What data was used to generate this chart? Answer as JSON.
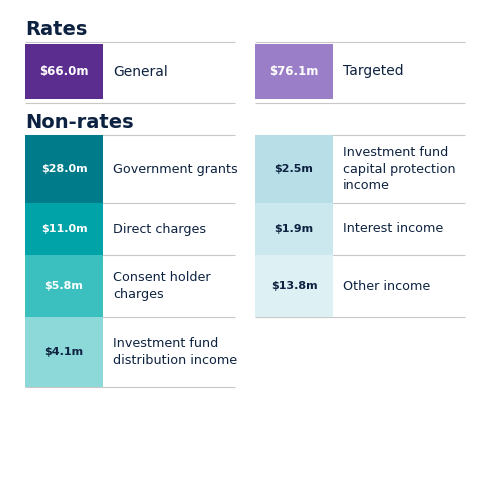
{
  "title_rates": "Rates",
  "title_non_rates": "Non-rates",
  "bg_color": "#ffffff",
  "title_color": "#0d2240",
  "label_color": "#0d2240",
  "rates": [
    {
      "amount": "$66.0m",
      "label": "General",
      "box_color": "#5b2d8e",
      "text_color": "#ffffff"
    },
    {
      "amount": "$76.1m",
      "label": "Targeted",
      "box_color": "#9b7ec8",
      "text_color": "#ffffff"
    }
  ],
  "non_rates_left": [
    {
      "amount": "$28.0m",
      "label": "Government grants",
      "box_color": "#007b8a",
      "text_color": "#ffffff"
    },
    {
      "amount": "$11.0m",
      "label": "Direct charges",
      "box_color": "#00a3a8",
      "text_color": "#ffffff"
    },
    {
      "amount": "$5.8m",
      "label": "Consent holder\ncharges",
      "box_color": "#3bbfbf",
      "text_color": "#ffffff"
    },
    {
      "amount": "$4.1m",
      "label": "Investment fund\ndistribution income",
      "box_color": "#8dd8d8",
      "text_color": "#0d2240"
    }
  ],
  "non_rates_right": [
    {
      "amount": "$2.5m",
      "label": "Investment fund\ncapital protection\nincome",
      "box_color": "#b8dfe8",
      "text_color": "#0d2240"
    },
    {
      "amount": "$1.9m",
      "label": "Interest income",
      "box_color": "#cce8ef",
      "text_color": "#0d2240"
    },
    {
      "amount": "$13.8m",
      "label": "Other income",
      "box_color": "#ddf0f4",
      "text_color": "#0d2240"
    }
  ],
  "divider_color": "#c8c8c8",
  "fig_width": 5.0,
  "fig_height": 5.0
}
